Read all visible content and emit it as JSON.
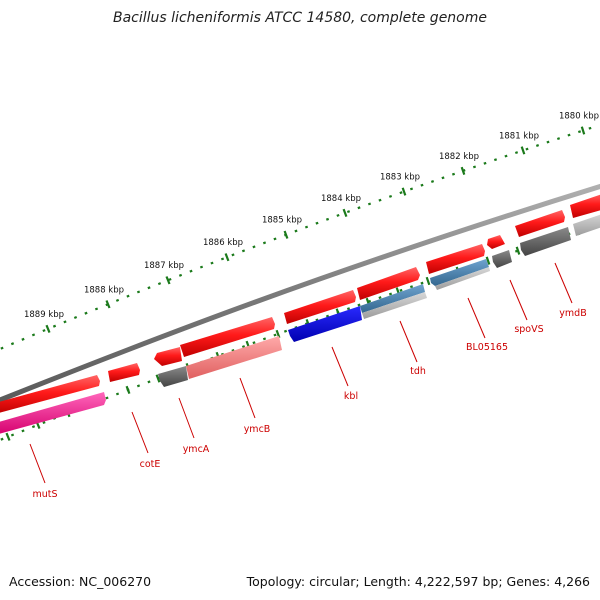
{
  "title": "Bacillus licheniformis ATCC 14580, complete genome",
  "accession_label": "Accession: NC_006270",
  "topology_label": "Topology: circular; Length: 4,222,597 bp; Genes: 4,266",
  "colors": {
    "forward": "#ff1a1a",
    "backbone": "#8c8c8c",
    "ruler": "#1b7a1b",
    "label": "#cc0000"
  },
  "ruler_ticks": [
    {
      "label": "1880 kbp",
      "kbp": 1880
    },
    {
      "label": "1881 kbp",
      "kbp": 1881
    },
    {
      "label": "1882 kbp",
      "kbp": 1882
    },
    {
      "label": "1883 kbp",
      "kbp": 1883
    },
    {
      "label": "1884 kbp",
      "kbp": 1884
    },
    {
      "label": "1885 kbp",
      "kbp": 1885
    },
    {
      "label": "1886 kbp",
      "kbp": 1886
    },
    {
      "label": "1887 kbp",
      "kbp": 1887
    },
    {
      "label": "1888 kbp",
      "kbp": 1888
    },
    {
      "label": "1889 kbp",
      "kbp": 1889
    }
  ],
  "genes": [
    {
      "name": "mutS",
      "strand": "-",
      "color": "#ff3399"
    },
    {
      "name": "cotE",
      "strand": "+",
      "color": "#ff1a1a"
    },
    {
      "name": "ymcA",
      "strand": "-",
      "color": "#666666"
    },
    {
      "name": "ymcB",
      "strand": "-",
      "color": "#ff8080"
    },
    {
      "name": "kbl",
      "strand": "-",
      "color": "#0000e0"
    },
    {
      "name": "tdh",
      "strand": "-",
      "color": "#4682b4"
    },
    {
      "name": "BL05165",
      "strand": "-",
      "color": "#4682b4"
    },
    {
      "name": "spoVS",
      "strand": "-",
      "color": "#666666"
    },
    {
      "name": "ymdB",
      "strand": "-",
      "color": "#666666"
    }
  ]
}
